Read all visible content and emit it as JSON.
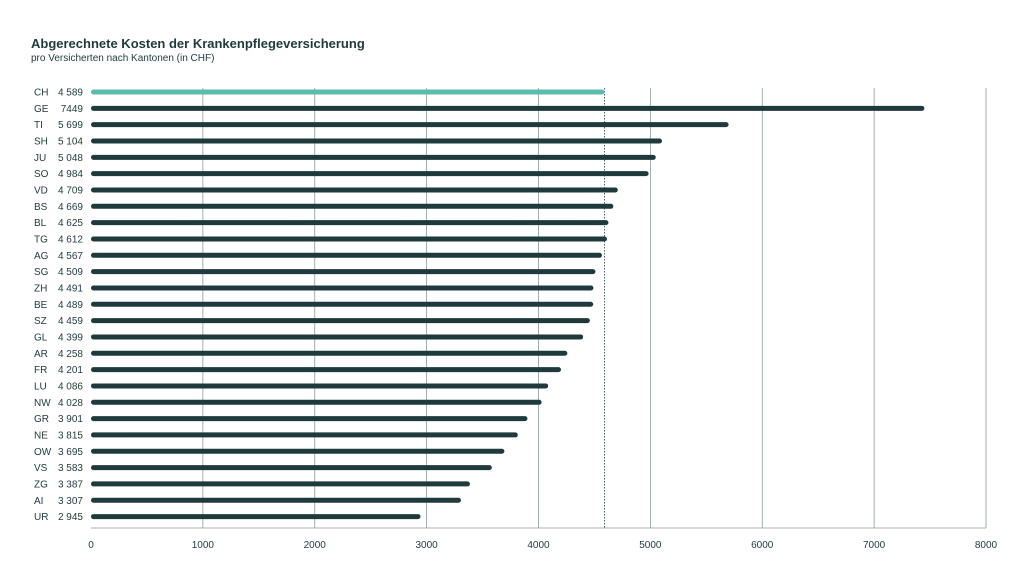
{
  "chart_data": {
    "type": "bar",
    "orientation": "horizontal",
    "title": "Abgerechnete Kosten der Krankenpflegeversicherung",
    "subtitle": "pro Versicherten nach Kantonen (in CHF)",
    "categories": [
      "CH",
      "GE",
      "TI",
      "SH",
      "JU",
      "SO",
      "VD",
      "BS",
      "BL",
      "TG",
      "AG",
      "SG",
      "ZH",
      "BE",
      "SZ",
      "GL",
      "AR",
      "FR",
      "LU",
      "NW",
      "GR",
      "NE",
      "OW",
      "VS",
      "ZG",
      "AI",
      "UR"
    ],
    "value_labels": [
      "4 589",
      "7449",
      "5 699",
      "5 104",
      "5 048",
      "4 984",
      "4 709",
      "4 669",
      "4 625",
      "4 612",
      "4 567",
      "4 509",
      "4 491",
      "4 489",
      "4 459",
      "4 399",
      "4 258",
      "4 201",
      "4 086",
      "4 028",
      "3 901",
      "3 815",
      "3 695",
      "3 583",
      "3 387",
      "3 307",
      "2 945"
    ],
    "values": [
      4589,
      7449,
      5699,
      5104,
      5048,
      4984,
      4709,
      4669,
      4625,
      4612,
      4567,
      4509,
      4491,
      4489,
      4459,
      4399,
      4258,
      4201,
      4086,
      4028,
      3901,
      3815,
      3695,
      3583,
      3387,
      3307,
      2945
    ],
    "highlight_category": "CH",
    "reference_line_value": 4589,
    "xlim": [
      0,
      8000
    ],
    "xticks": [
      0,
      1000,
      2000,
      3000,
      4000,
      5000,
      6000,
      7000,
      8000
    ],
    "xlabel": "",
    "ylabel": "",
    "grid": "vertical",
    "colors": {
      "bar": "#1f3a3d",
      "highlight": "#5bbcab",
      "grid": "#8a9a9c"
    }
  }
}
